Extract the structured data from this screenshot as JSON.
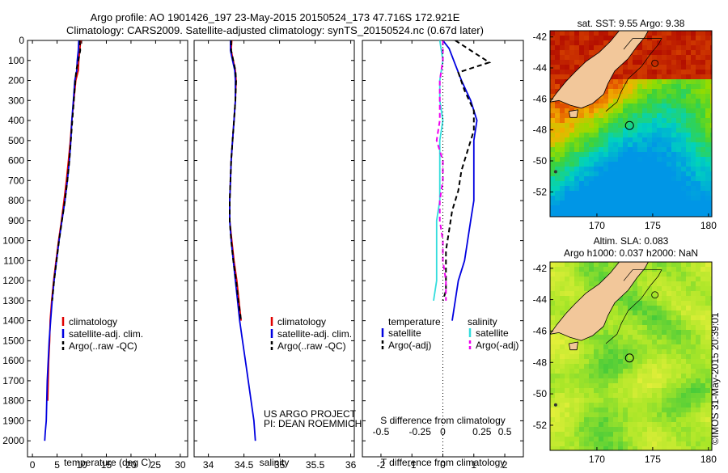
{
  "header": {
    "line1": "Argo profile: AO 1901426_197 23-May-2015 20150524_173 47.716S 172.921E",
    "line2": "Climatology: CARS2009. Satellite-adjusted climatology: synTS_20150524.nc (0.67d later)"
  },
  "colors": {
    "climatology": "#e00000",
    "satellite": "#0000e0",
    "argo": "#000000",
    "sal_satellite": "#33dddd",
    "sal_argo": "#ee00ee",
    "land": "#f2c79a"
  },
  "depth_axis": {
    "ticks": [
      0,
      100,
      200,
      300,
      400,
      500,
      600,
      700,
      800,
      900,
      1000,
      1100,
      1200,
      1300,
      1400,
      1500,
      1600,
      1700,
      1800,
      1900,
      2000
    ]
  },
  "chart_data": [
    {
      "id": "temperature",
      "type": "line",
      "xlabel": "temperature (deg C)",
      "xticks": [
        0,
        5,
        10,
        15,
        20,
        25,
        30
      ],
      "xlim": [
        -1,
        31.5
      ],
      "ylim": [
        0,
        2080
      ],
      "legend": [
        "climatology",
        "satellite-adj. clim.",
        "Argo(..raw -QC)"
      ],
      "series": [
        {
          "name": "climatology",
          "color_key": "climatology",
          "x": [
            9.8,
            9.6,
            9.4,
            9.3,
            8.8,
            8.4,
            8.0,
            7.7,
            7.3,
            6.9,
            6.4,
            5.9,
            5.3,
            4.8,
            4.3,
            3.9,
            3.6,
            3.5,
            3.3,
            3.2,
            3.1
          ],
          "y": [
            0,
            50,
            100,
            150,
            200,
            300,
            400,
            500,
            600,
            700,
            800,
            900,
            1000,
            1100,
            1200,
            1300,
            1400,
            1500,
            1600,
            1700,
            1800
          ]
        },
        {
          "name": "satellite-adj. clim.",
          "color_key": "satellite",
          "x": [
            9.4,
            9.3,
            9.1,
            9.0,
            8.6,
            8.3,
            8.0,
            7.8,
            7.5,
            7.1,
            6.6,
            6.0,
            5.4,
            4.9,
            4.4,
            4.0,
            3.7,
            3.4,
            3.2,
            3.0,
            2.9,
            2.8,
            2.6,
            2.5
          ],
          "y": [
            0,
            50,
            100,
            150,
            200,
            300,
            400,
            500,
            600,
            700,
            800,
            900,
            1000,
            1100,
            1200,
            1300,
            1400,
            1500,
            1600,
            1700,
            1800,
            1900,
            1960,
            2000
          ]
        },
        {
          "name": "Argo(..raw -QC)",
          "color_key": "argo",
          "x": [
            9.6,
            9.7,
            9.3,
            8.9,
            8.7,
            8.4,
            8.1,
            7.8,
            7.5,
            7.1,
            6.6,
            6.0,
            5.4,
            4.9,
            4.4,
            4.0
          ],
          "y": [
            0,
            50,
            100,
            150,
            200,
            300,
            400,
            500,
            600,
            700,
            800,
            900,
            1000,
            1100,
            1200,
            1300
          ]
        }
      ]
    },
    {
      "id": "salinity",
      "type": "line",
      "xlabel": "salinity",
      "xticks": [
        34,
        34.5,
        35,
        35.5,
        36
      ],
      "xlim": [
        33.8,
        36.05
      ],
      "ylim": [
        0,
        2080
      ],
      "legend": [
        "climatology",
        "satellite-adj. clim.",
        "Argo(..raw -QC)"
      ],
      "series": [
        {
          "name": "climatology",
          "color_key": "climatology",
          "x": [
            34.33,
            34.32,
            34.35,
            34.38,
            34.39,
            34.38,
            34.36,
            34.34,
            34.32,
            34.31,
            34.3,
            34.3,
            34.33,
            34.36,
            34.4,
            34.43,
            34.46
          ],
          "y": [
            0,
            50,
            100,
            150,
            200,
            300,
            400,
            500,
            600,
            700,
            800,
            900,
            1000,
            1100,
            1200,
            1300,
            1400
          ]
        },
        {
          "name": "satellite-adj. clim.",
          "color_key": "satellite",
          "x": [
            34.31,
            34.31,
            34.34,
            34.37,
            34.38,
            34.38,
            34.36,
            34.34,
            34.32,
            34.31,
            34.3,
            34.3,
            34.32,
            34.35,
            34.38,
            34.41,
            34.44,
            34.48,
            34.52,
            34.56,
            34.6,
            34.64,
            34.66
          ],
          "y": [
            0,
            50,
            100,
            150,
            200,
            300,
            400,
            500,
            600,
            700,
            800,
            900,
            1000,
            1100,
            1200,
            1300,
            1400,
            1500,
            1600,
            1700,
            1800,
            1900,
            2000
          ]
        },
        {
          "name": "Argo(..raw -QC)",
          "color_key": "argo",
          "x": [
            34.32,
            34.32,
            34.35,
            34.38,
            34.39,
            34.38,
            34.36,
            34.34,
            34.32,
            34.31,
            34.3,
            34.3,
            34.32,
            34.35,
            34.39,
            34.42,
            34.46
          ],
          "y": [
            0,
            50,
            100,
            150,
            200,
            300,
            400,
            500,
            600,
            700,
            800,
            900,
            1000,
            1100,
            1200,
            1300,
            1400
          ]
        }
      ],
      "annotations": [
        "US ARGO PROJECT",
        "PI: DEAN ROEMMICH"
      ]
    },
    {
      "id": "difference",
      "type": "line",
      "xlabel": "T difference from climatology",
      "x2label": "S difference from climatology",
      "xticks": [
        -2,
        -1,
        0,
        1,
        2
      ],
      "x2ticks": [
        "-0.5",
        "-0.25",
        "0",
        "0.25",
        "0.5"
      ],
      "xlim": [
        -2.6,
        2.6
      ],
      "ylim": [
        0,
        2080
      ],
      "legend_groups": [
        {
          "title": "temperature",
          "items": [
            "satellite",
            "Argo(-adj)"
          ]
        },
        {
          "title": "salinity",
          "items": [
            "satellite",
            "Argo(-adj)"
          ]
        }
      ],
      "series": [
        {
          "name": "temperature satellite",
          "color_key": "satellite",
          "x": [
            0.0,
            0.2,
            0.3,
            0.4,
            0.6,
            0.9,
            1.1,
            1.0,
            1.0,
            1.0,
            1.0,
            0.9,
            0.8,
            0.7,
            0.5,
            0.4,
            0.3
          ],
          "y": [
            0,
            40,
            80,
            120,
            200,
            300,
            400,
            500,
            600,
            700,
            800,
            900,
            1000,
            1100,
            1200,
            1300,
            1400
          ]
        },
        {
          "name": "temperature Argo(-adj)",
          "color_key": "argo",
          "x": [
            0.4,
            1.0,
            1.5,
            0.5,
            0.7,
            1.0,
            1.0,
            0.8,
            0.6,
            0.5,
            0.3,
            0.2,
            0.1,
            0.1,
            0.1,
            0.0
          ],
          "y": [
            0,
            60,
            110,
            160,
            250,
            350,
            450,
            550,
            650,
            750,
            850,
            950,
            1050,
            1150,
            1250,
            1300
          ]
        },
        {
          "name": "salinity satellite",
          "color_key": "sal_satellite",
          "x": [
            -0.1,
            0.0,
            -0.1,
            -0.1,
            0.0,
            -0.1,
            -0.1,
            -0.1,
            -0.1,
            -0.2,
            -0.2,
            -0.2,
            -0.2,
            -0.3
          ],
          "y": [
            0,
            100,
            200,
            300,
            400,
            500,
            600,
            700,
            800,
            900,
            1000,
            1100,
            1200,
            1300
          ]
        },
        {
          "name": "salinity Argo(-adj)",
          "color_key": "sal_argo",
          "x": [
            0.0,
            0.0,
            -0.1,
            -0.1,
            -0.1,
            -0.2,
            0.0,
            0.0,
            -0.1,
            -0.1,
            0.0,
            0.0,
            0.1,
            0.1
          ],
          "y": [
            0,
            100,
            200,
            300,
            400,
            500,
            600,
            700,
            800,
            900,
            1000,
            1100,
            1200,
            1300
          ]
        }
      ]
    }
  ],
  "maps": [
    {
      "id": "sst-map",
      "title": "sat. SST: 9.55 Argo: 9.38",
      "xticks": [
        170,
        175,
        180
      ],
      "yticks": [
        -42,
        -44,
        -46,
        -48,
        -50,
        -52
      ],
      "xlim": [
        165.8,
        180.3
      ],
      "ylim": [
        -53.6,
        -41.6
      ],
      "float_position": [
        172.921,
        -47.716
      ]
    },
    {
      "id": "sla-map",
      "title_line1": "Altim. SLA: 0.083",
      "title_line2": "Argo h1000: 0.037 h2000: NaN",
      "xticks": [
        170,
        175,
        180
      ],
      "yticks": [
        -42,
        -44,
        -46,
        -48,
        -50,
        -52
      ],
      "xlim": [
        165.8,
        180.3
      ],
      "ylim": [
        -53.6,
        -41.6
      ],
      "float_position": [
        172.921,
        -47.716
      ]
    }
  ],
  "credit": "©IMOS 31-May-2015 20:39:01"
}
